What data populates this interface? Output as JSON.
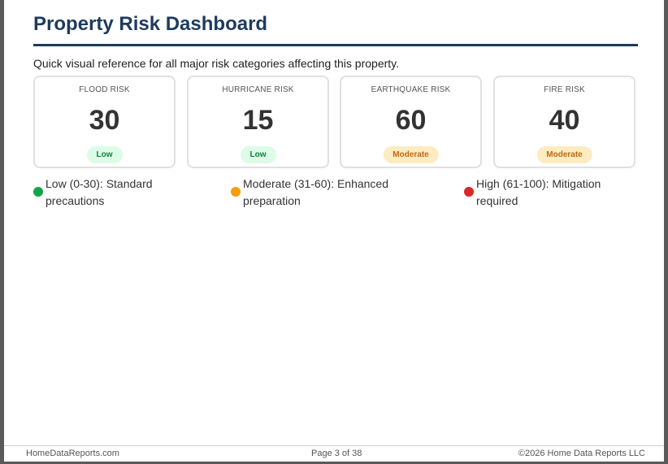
{
  "page": {
    "title": "Property Risk Dashboard",
    "intro": "Quick visual reference for all major risk categories affecting this property."
  },
  "cards": [
    {
      "label": "FLOOD RISK",
      "score": "30",
      "level": "Low"
    },
    {
      "label": "HURRICANE RISK",
      "score": "15",
      "level": "Low"
    },
    {
      "label": "EARTHQUAKE RISK",
      "score": "60",
      "level": "Moderate"
    },
    {
      "label": "FIRE RISK",
      "score": "40",
      "level": "Moderate"
    }
  ],
  "legend": [
    {
      "line1": "Low (0-30): Standard",
      "line2": "precautions",
      "color": "#16a34a"
    },
    {
      "line1": "Moderate (31-60): Enhanced",
      "line2": "preparation",
      "color": "#f59e0b"
    },
    {
      "line1": "High (61-100): Mitigation",
      "line2": "required",
      "color": "#dc2626"
    }
  ],
  "footer": {
    "left": "HomeDataReports.com",
    "center": "Page 3 of 38",
    "right": "©2026 Home Data Reports LLC"
  }
}
